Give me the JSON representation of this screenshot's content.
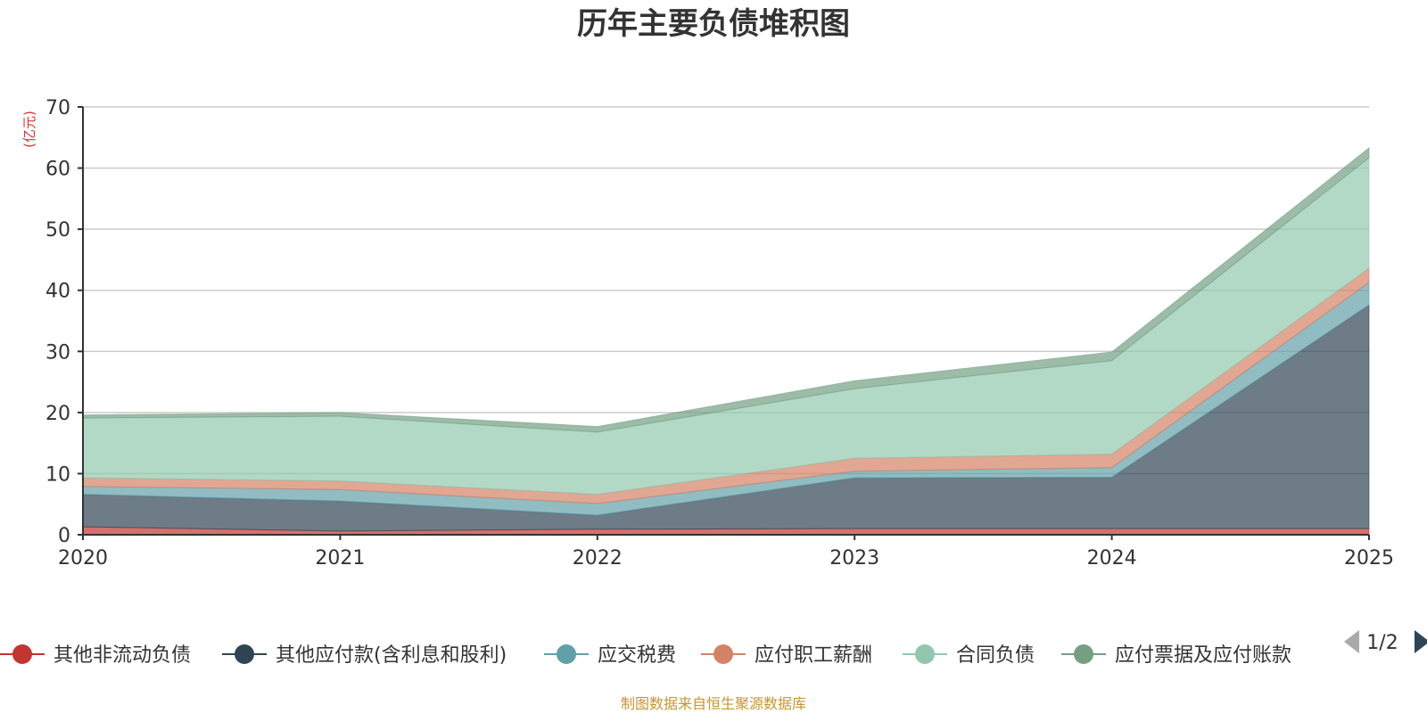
{
  "chart_data": {
    "type": "area",
    "stacked": true,
    "title": "历年主要负债堆积图",
    "ylabel": "(亿元)",
    "x": [
      "2020",
      "2021",
      "2022",
      "2023",
      "2024",
      "2025"
    ],
    "ylim": [
      0,
      70
    ],
    "yticks": [
      0,
      10,
      20,
      30,
      40,
      50,
      60,
      70
    ],
    "grid": true,
    "series": [
      {
        "name": "其他非流动负债",
        "color": "#c23531",
        "values": [
          1.3,
          0.6,
          0.9,
          1.0,
          1.0,
          1.0
        ]
      },
      {
        "name": "其他应付款(含利息和股利)",
        "color": "#2f4554",
        "values": [
          5.3,
          4.9,
          2.3,
          8.3,
          8.4,
          36.6
        ]
      },
      {
        "name": "应交税费",
        "color": "#61a0a8",
        "values": [
          1.3,
          1.9,
          1.9,
          1.1,
          1.6,
          3.7
        ]
      },
      {
        "name": "应付职工薪酬",
        "color": "#d48265",
        "values": [
          1.4,
          1.4,
          1.5,
          2.1,
          2.2,
          2.3
        ]
      },
      {
        "name": "合同负债",
        "color": "#91c7ae",
        "values": [
          9.8,
          10.6,
          10.2,
          11.4,
          15.3,
          18.1
        ]
      },
      {
        "name": "应付票据及应付账款",
        "color": "#749f83",
        "values": [
          0.5,
          0.6,
          0.9,
          1.3,
          1.4,
          1.6
        ]
      }
    ],
    "legend": {
      "position": "bottom",
      "page": "1/2"
    }
  },
  "source_note": "制图数据来自恒生聚源数据库"
}
